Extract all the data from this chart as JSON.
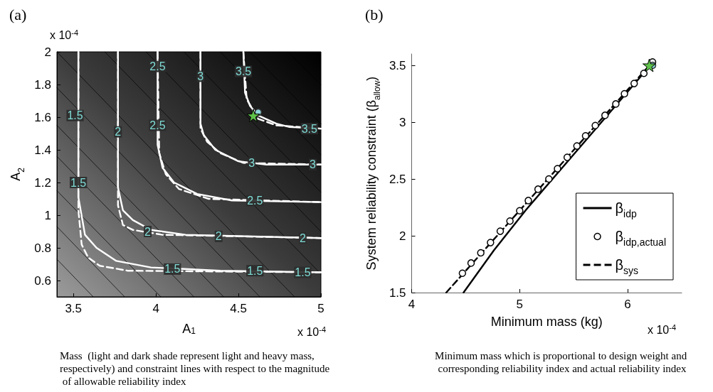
{
  "chart_data": [
    {
      "type": "line",
      "title": "(a)",
      "xlabel": "A$_{1}$",
      "ylabel": "A$_{2}$",
      "xlim": [
        3.4,
        5
      ],
      "xticks": [
        3.5,
        4,
        4.5,
        5
      ],
      "ylim": [
        0.5,
        2
      ],
      "yticks": [
        0.6,
        0.8,
        1,
        1.2,
        1.4,
        1.6,
        1.8,
        2
      ],
      "series": [
        {
          "color": "#000000",
          "marker": "none",
          "line_style": "solid",
          "x": [
            3.4,
            3.62
          ],
          "values": [
            0.73,
            0.5
          ]
        },
        {
          "color": "#000000",
          "marker": "none",
          "line_style": "solid",
          "x": [
            3.4,
            3.81
          ],
          "values": [
            0.93,
            0.5
          ]
        },
        {
          "color": "#000000",
          "marker": "none",
          "line_style": "solid",
          "x": [
            3.4,
            4.03
          ],
          "values": [
            1.15,
            0.5
          ]
        },
        {
          "color": "#000000",
          "marker": "none",
          "line_style": "solid",
          "x": [
            3.4,
            4.23
          ],
          "values": [
            1.36,
            0.5
          ]
        },
        {
          "color": "#000000",
          "marker": "none",
          "line_style": "solid",
          "x": [
            3.4,
            4.41
          ],
          "values": [
            1.55,
            0.5
          ]
        },
        {
          "color": "#000000",
          "marker": "none",
          "line_style": "solid",
          "x": [
            3.4,
            4.63
          ],
          "values": [
            1.78,
            0.5
          ]
        },
        {
          "color": "#000000",
          "marker": "none",
          "line_style": "solid",
          "x": [
            3.4,
            4.84
          ],
          "values": [
            2,
            0.5
          ]
        },
        {
          "color": "#000000",
          "marker": "none",
          "line_style": "solid",
          "x": [
            3.69,
            5
          ],
          "values": [
            2,
            0.64
          ]
        },
        {
          "color": "#000000",
          "marker": "none",
          "line_style": "solid",
          "x": [
            3.94,
            5
          ],
          "values": [
            2,
            0.9
          ]
        },
        {
          "color": "#000000",
          "marker": "none",
          "line_style": "solid",
          "x": [
            4.17,
            5
          ],
          "values": [
            2,
            1.14
          ]
        },
        {
          "color": "#000000",
          "marker": "none",
          "line_style": "solid",
          "x": [
            4.39,
            5
          ],
          "values": [
            2,
            1.37
          ]
        },
        {
          "color": "#000000",
          "marker": "none",
          "line_style": "solid",
          "x": [
            4.57,
            5
          ],
          "values": [
            2,
            1.56
          ]
        },
        {
          "color": "#000000",
          "marker": "none",
          "line_style": "solid",
          "x": [
            4.8,
            5
          ],
          "values": [
            2,
            1.8
          ]
        },
        {
          "color": "#ffffff",
          "marker": "none",
          "line_style": "solid",
          "x": [
            3.53,
            3.53,
            3.57,
            3.64,
            3.76,
            3.97,
            4.39,
            5
          ],
          "values": [
            2,
            1.11,
            0.88,
            0.8,
            0.72,
            0.68,
            0.66,
            0.65
          ]
        },
        {
          "color": "#ffffff",
          "marker": "none",
          "line_style": "dashed",
          "x": [
            3.53,
            3.53,
            3.55,
            3.59,
            3.66,
            3.83,
            5
          ],
          "values": [
            2,
            1.03,
            0.82,
            0.74,
            0.69,
            0.66,
            0.65
          ]
        },
        {
          "color": "#ffffff",
          "marker": "none",
          "line_style": "solid",
          "x": [
            3.77,
            3.77,
            3.8,
            3.86,
            3.97,
            4.18,
            5
          ],
          "values": [
            2,
            1.17,
            1.03,
            0.97,
            0.91,
            0.88,
            0.86
          ]
        },
        {
          "color": "#ffffff",
          "marker": "none",
          "line_style": "dashed",
          "x": [
            3.77,
            3.77,
            3.8,
            3.86,
            4.04,
            5
          ],
          "values": [
            2,
            1.06,
            0.94,
            0.91,
            0.88,
            0.86
          ]
        },
        {
          "color": "#ffffff",
          "marker": "none",
          "line_style": "solid",
          "x": [
            4.01,
            4.01,
            4.04,
            4.11,
            4.25,
            4.46,
            5
          ],
          "values": [
            2,
            1.43,
            1.29,
            1.2,
            1.13,
            1.09,
            1.08
          ]
        },
        {
          "color": "#ffffff",
          "marker": "none",
          "line_style": "dashed",
          "x": [
            4.01,
            4.02,
            4.06,
            4.14,
            4.32,
            5
          ],
          "values": [
            2,
            1.38,
            1.25,
            1.16,
            1.1,
            1.08
          ]
        },
        {
          "color": "#ffffff",
          "marker": "none",
          "line_style": "solid",
          "x": [
            4.27,
            4.27,
            4.29,
            4.36,
            4.5,
            4.67,
            5
          ],
          "values": [
            2,
            1.56,
            1.49,
            1.4,
            1.33,
            1.31,
            1.31
          ]
        },
        {
          "color": "#ffffff",
          "marker": "none",
          "line_style": "dashed",
          "x": [
            4.27,
            4.27,
            4.31,
            4.39,
            4.53,
            5
          ],
          "values": [
            2,
            1.53,
            1.45,
            1.38,
            1.32,
            1.31
          ]
        },
        {
          "color": "#ffffff",
          "marker": "none",
          "line_style": "solid",
          "x": [
            4.53,
            4.54,
            4.57,
            4.62,
            4.73,
            4.81,
            5
          ],
          "values": [
            2,
            1.75,
            1.67,
            1.61,
            1.56,
            1.54,
            1.53
          ]
        },
        {
          "color": "#ffffff",
          "marker": "none",
          "line_style": "dashed",
          "x": [
            4.53,
            4.55,
            4.62,
            4.73,
            5
          ],
          "values": [
            2,
            1.71,
            1.59,
            1.55,
            1.53
          ]
        },
        {
          "type": "scatter",
          "color": "#8fd8dc",
          "marker": "circle",
          "x": [
            4.62
          ],
          "values": [
            1.63
          ]
        },
        {
          "type": "scatter",
          "color": "#5fc24a",
          "marker": "star",
          "x": [
            4.59
          ],
          "values": [
            1.61
          ]
        }
      ],
      "annotations": [
        {
          "text": "1.5",
          "x": 3.51,
          "y": 1.61
        },
        {
          "text": "1.5",
          "x": 3.53,
          "y": 1.2
        },
        {
          "text": "1.5",
          "x": 4.1,
          "y": 0.67
        },
        {
          "text": "1.5",
          "x": 4.6,
          "y": 0.66
        },
        {
          "text": "1.5",
          "x": 4.89,
          "y": 0.65
        },
        {
          "text": "2",
          "x": 3.77,
          "y": 1.51
        },
        {
          "text": "2",
          "x": 3.95,
          "y": 0.9
        },
        {
          "text": "2",
          "x": 4.38,
          "y": 0.87
        },
        {
          "text": "2",
          "x": 4.89,
          "y": 0.86
        },
        {
          "text": "2.5",
          "x": 4.01,
          "y": 1.91
        },
        {
          "text": "2.5",
          "x": 4.01,
          "y": 1.55
        },
        {
          "text": "2.5",
          "x": 4.6,
          "y": 1.09
        },
        {
          "text": "3",
          "x": 4.27,
          "y": 1.85
        },
        {
          "text": "3",
          "x": 4.58,
          "y": 1.32
        },
        {
          "text": "3",
          "x": 4.95,
          "y": 1.31
        },
        {
          "text": "3.5",
          "x": 4.53,
          "y": 1.88
        },
        {
          "text": "3.5",
          "x": 4.93,
          "y": 1.53
        },
        "x 10$^{-4}$",
        "x 10$^{-4}$",
        "Mass  (light and dark shade represent light and heavy mass, respectively) and constraint lines with respect to the magnitude of allowable reliability index"
      ]
    },
    {
      "type": "line",
      "title": "(b)",
      "xlabel": "Minimum mass (kg)",
      "ylabel": "System reliability constraint (β$_{allow}$)",
      "xlim": [
        4,
        6.5
      ],
      "xticks": [
        4,
        5,
        6
      ],
      "ylim": [
        1.5,
        3.6
      ],
      "yticks": [
        1.5,
        2,
        2.5,
        3,
        3.5
      ],
      "legend": "bottom right",
      "series": [
        {
          "name": "β$_{idp}$",
          "color": "#000000",
          "marker": "none",
          "line_style": "solid",
          "x": [
            4.48,
            4.76,
            5.06,
            6.21
          ],
          "values": [
            1.5,
            1.87,
            2.23,
            3.5
          ]
        },
        {
          "name": "β$_{idp,actual}$",
          "type": "scatter",
          "color": "#000000",
          "marker": "circle",
          "x": [
            4.47,
            4.55,
            4.64,
            4.73,
            4.82,
            4.91,
            5.0,
            5.08,
            5.17,
            5.27,
            5.35,
            5.44,
            5.53,
            5.61,
            5.7,
            5.79,
            5.89,
            5.97,
            6.06,
            6.15,
            6.23
          ],
          "values": [
            1.67,
            1.76,
            1.85,
            1.94,
            2.04,
            2.13,
            2.22,
            2.31,
            2.41,
            2.5,
            2.59,
            2.69,
            2.79,
            2.88,
            2.97,
            3.06,
            3.16,
            3.25,
            3.34,
            3.43,
            3.53
          ]
        },
        {
          "name": "β$_{sys}$",
          "color": "#000000",
          "marker": "none",
          "line_style": "dashed",
          "x": [
            4.32,
            6.23
          ],
          "values": [
            1.5,
            3.53
          ]
        },
        {
          "type": "scatter",
          "color": "#8fd8dc",
          "marker": "circle",
          "x": [
            6.23
          ],
          "values": [
            3.5
          ]
        },
        {
          "type": "scatter",
          "color": "#5fc24a",
          "marker": "star",
          "x": [
            6.2
          ],
          "values": [
            3.5
          ]
        }
      ],
      "annotations": [
        "x 10$^{-4}$",
        "Minimum mass which is proportional to design weight and corresponding reliability index and actual reliability index"
      ]
    }
  ]
}
